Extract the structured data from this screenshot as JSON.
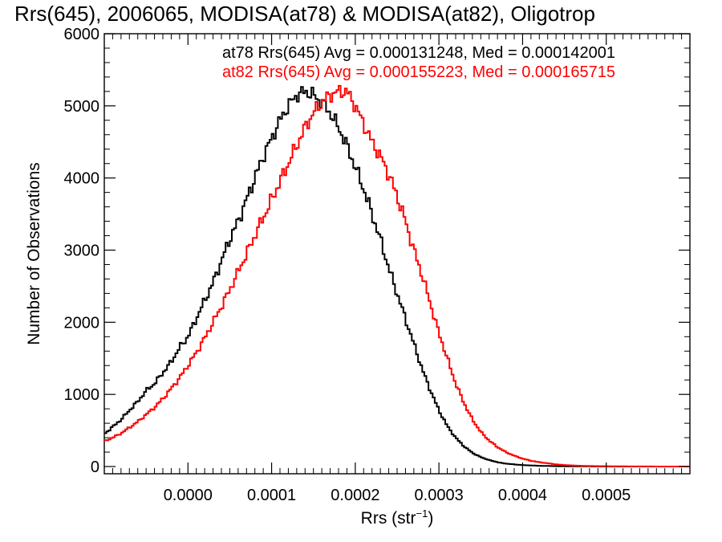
{
  "chart_data": {
    "type": "histogram",
    "title": "Rrs(645), 2006065, MODISA(at78) & MODISA(at82), Oligotrop",
    "xlabel": "Rrs (str",
    "xlabel_sup": "−1",
    "xlabel_close": ")",
    "ylabel": "Number of Observations",
    "xlim": [
      -0.0001,
      0.0006
    ],
    "ylim": [
      -100,
      6000
    ],
    "xticks": [
      {
        "value": 0.0,
        "label": "0.0000"
      },
      {
        "value": 0.0001,
        "label": "0.0001"
      },
      {
        "value": 0.0002,
        "label": "0.0002"
      },
      {
        "value": 0.0003,
        "label": "0.0003"
      },
      {
        "value": 0.0004,
        "label": "0.0004"
      },
      {
        "value": 0.0005,
        "label": "0.0005"
      }
    ],
    "yticks": [
      {
        "value": 0,
        "label": "0"
      },
      {
        "value": 1000,
        "label": "1000"
      },
      {
        "value": 2000,
        "label": "2000"
      },
      {
        "value": 3000,
        "label": "3000"
      },
      {
        "value": 4000,
        "label": "4000"
      },
      {
        "value": 5000,
        "label": "5000"
      },
      {
        "value": 6000,
        "label": "6000"
      }
    ],
    "legend": [
      {
        "text": "at78 Rrs(645) Avg = 0.000131248, Med = 0.000142001",
        "color": "#000000"
      },
      {
        "text": "at82 Rrs(645) Avg = 0.000155223, Med = 0.000165715",
        "color": "#ff0000"
      }
    ],
    "legend_placement": "top-right",
    "series": [
      {
        "name": "at78",
        "color": "#000000",
        "x": [
          -0.0001,
          -9e-05,
          -8e-05,
          -7e-05,
          -6e-05,
          -5e-05,
          -4e-05,
          -3e-05,
          -2e-05,
          -1e-05,
          0.0,
          1e-05,
          2e-05,
          3e-05,
          4e-05,
          5e-05,
          6e-05,
          7e-05,
          8e-05,
          9e-05,
          0.0001,
          0.00011,
          0.00012,
          0.00013,
          0.00014,
          0.00015,
          0.00016,
          0.00017,
          0.00018,
          0.00019,
          0.0002,
          0.00021,
          0.00022,
          0.00023,
          0.00024,
          0.00025,
          0.00026,
          0.00027,
          0.00028,
          0.00029,
          0.0003,
          0.00031,
          0.00032,
          0.00033,
          0.00034,
          0.00035,
          0.00036,
          0.00037,
          0.00038,
          0.00039,
          0.0004,
          0.00041,
          0.00042,
          0.00043,
          0.00044,
          0.00045,
          0.00046,
          0.00047,
          0.00048,
          0.00049,
          0.0005,
          0.00052,
          0.00055,
          0.00058,
          0.0006
        ],
        "y": [
          450,
          550,
          650,
          780,
          900,
          1050,
          1150,
          1300,
          1450,
          1650,
          1800,
          2050,
          2300,
          2550,
          2850,
          3150,
          3400,
          3700,
          4000,
          4300,
          4550,
          4800,
          5000,
          5150,
          5200,
          5150,
          5050,
          4900,
          4700,
          4450,
          4150,
          3850,
          3500,
          3150,
          2750,
          2400,
          2050,
          1700,
          1350,
          1050,
          780,
          560,
          400,
          280,
          190,
          130,
          90,
          60,
          40,
          30,
          20,
          15,
          10,
          8,
          5,
          4,
          3,
          2,
          2,
          1,
          1,
          0,
          0,
          0,
          0
        ]
      },
      {
        "name": "at82",
        "color": "#ff0000",
        "x": [
          -0.0001,
          -9e-05,
          -8e-05,
          -7e-05,
          -6e-05,
          -5e-05,
          -4e-05,
          -3e-05,
          -2e-05,
          -1e-05,
          0.0,
          1e-05,
          2e-05,
          3e-05,
          4e-05,
          5e-05,
          6e-05,
          7e-05,
          8e-05,
          9e-05,
          0.0001,
          0.00011,
          0.00012,
          0.00013,
          0.00014,
          0.00015,
          0.00016,
          0.00017,
          0.00018,
          0.00019,
          0.0002,
          0.00021,
          0.00022,
          0.00023,
          0.00024,
          0.00025,
          0.00026,
          0.00027,
          0.00028,
          0.00029,
          0.0003,
          0.00031,
          0.00032,
          0.00033,
          0.00034,
          0.00035,
          0.00036,
          0.00037,
          0.00038,
          0.00039,
          0.0004,
          0.00041,
          0.00042,
          0.00043,
          0.00044,
          0.00045,
          0.00046,
          0.00047,
          0.00048,
          0.00049,
          0.0005,
          0.00052,
          0.00055,
          0.00058,
          0.0006
        ],
        "y": [
          350,
          400,
          460,
          540,
          620,
          720,
          820,
          940,
          1080,
          1230,
          1400,
          1580,
          1780,
          2000,
          2220,
          2450,
          2700,
          2950,
          3200,
          3450,
          3700,
          3950,
          4200,
          4450,
          4700,
          4900,
          5050,
          5150,
          5200,
          5200,
          5000,
          4750,
          4500,
          4300,
          4050,
          3750,
          3400,
          3000,
          2650,
          2250,
          1850,
          1500,
          1150,
          880,
          650,
          480,
          360,
          270,
          200,
          150,
          110,
          80,
          60,
          45,
          30,
          20,
          15,
          10,
          7,
          5,
          4,
          2,
          1,
          0,
          0
        ]
      }
    ]
  }
}
